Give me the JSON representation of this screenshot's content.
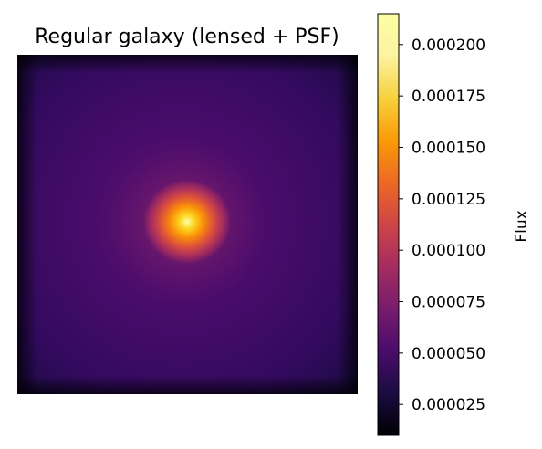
{
  "chart_data": {
    "type": "heatmap",
    "title": "Regular galaxy (lensed + PSF)",
    "colormap": "inferno",
    "axes_visible": false,
    "grid": false,
    "image": {
      "description": "smooth 2D flux map with a single bright core",
      "peak_flux": 0.00022,
      "center": [
        0.48,
        0.49
      ],
      "background_flux": 4.5e-05
    },
    "colorbar": {
      "label": "Flux",
      "min": 1e-05,
      "max": 0.000215,
      "ticks": [
        2.5e-05,
        5e-05,
        7.5e-05,
        0.0001,
        0.000125,
        0.00015,
        0.000175,
        0.0002
      ],
      "tick_labels": [
        "0.000025",
        "0.000050",
        "0.000075",
        "0.000100",
        "0.000125",
        "0.000150",
        "0.000175",
        "0.000200"
      ]
    }
  }
}
